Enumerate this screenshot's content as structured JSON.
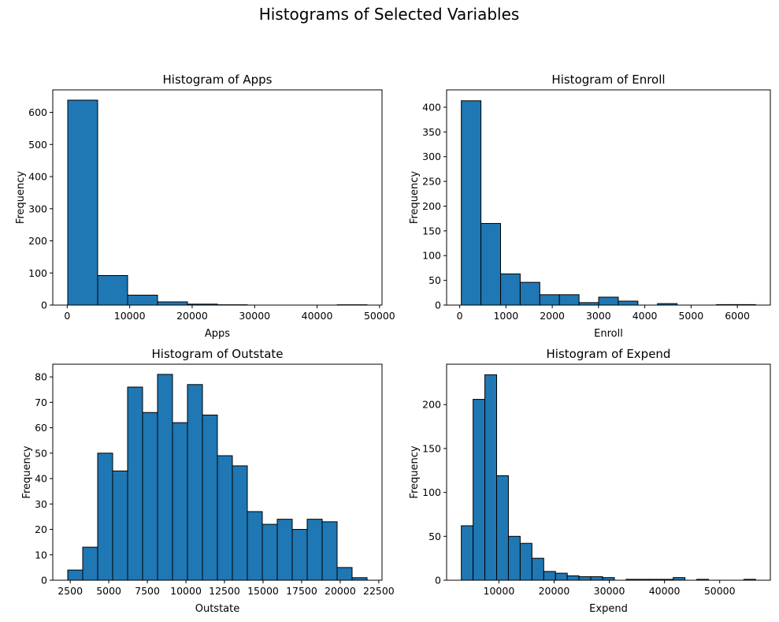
{
  "figure": {
    "suptitle": "Histograms of Selected Variables"
  },
  "chart_data": [
    {
      "type": "bar",
      "title": "Histogram of Apps",
      "xlabel": "Apps",
      "ylabel": "Frequency",
      "bin_edges": [
        81,
        4873,
        9665,
        14457,
        19249,
        24041,
        28833,
        33625,
        38417,
        43209,
        48001
      ],
      "values": [
        638,
        92,
        31,
        10,
        3,
        1,
        0,
        0,
        0,
        1
      ],
      "xlim": [
        -2315,
        50397
      ],
      "ylim": [
        0,
        670
      ],
      "xticks": [
        0,
        10000,
        20000,
        30000,
        40000,
        50000
      ],
      "yticks": [
        0,
        100,
        200,
        300,
        400,
        500,
        600
      ]
    },
    {
      "type": "bar",
      "title": "Histogram of Enroll",
      "xlabel": "Enroll",
      "ylabel": "Frequency",
      "bin_edges": [
        35,
        459,
        883,
        1307,
        1731,
        2155,
        2579,
        3003,
        3427,
        3851,
        4275,
        4699,
        5123,
        5547,
        5971,
        6395
      ],
      "values": [
        413,
        165,
        63,
        46,
        21,
        21,
        5,
        16,
        8,
        0,
        3,
        0,
        0,
        1,
        1
      ],
      "xlim": [
        -283,
        6713
      ],
      "ylim": [
        0,
        435
      ],
      "xticks": [
        0,
        1000,
        2000,
        3000,
        4000,
        5000,
        6000
      ],
      "yticks": [
        0,
        50,
        100,
        150,
        200,
        250,
        300,
        350,
        400
      ]
    },
    {
      "type": "bar",
      "title": "Histogram of Outstate",
      "xlabel": "Outstate",
      "ylabel": "Frequency",
      "bin_edges": [
        2340,
        3310,
        4280,
        5250,
        6220,
        7190,
        8160,
        9130,
        10100,
        11070,
        12040,
        13010,
        13980,
        14950,
        15920,
        16890,
        17860,
        18830,
        19800,
        20770,
        21740
      ],
      "values": [
        4,
        13,
        50,
        43,
        76,
        66,
        81,
        62,
        77,
        65,
        49,
        45,
        27,
        22,
        24,
        20,
        24,
        23,
        5,
        1
      ],
      "xlim": [
        1370,
        22710
      ],
      "ylim": [
        0,
        85
      ],
      "xticks": [
        2500,
        5000,
        7500,
        10000,
        12500,
        15000,
        17500,
        20000,
        22500
      ],
      "yticks": [
        0,
        10,
        20,
        30,
        40,
        50,
        60,
        70,
        80
      ]
    },
    {
      "type": "bar",
      "title": "Histogram of Expend",
      "xlabel": "Expend",
      "ylabel": "Frequency",
      "bin_edges": [
        3186,
        5319,
        7452,
        9585,
        11718,
        13851,
        15984,
        18117,
        20250,
        22383,
        24516,
        26649,
        28782,
        30915,
        33048,
        35181,
        37314,
        39447,
        41580,
        43713,
        45846,
        47979,
        50112,
        52245,
        54378,
        56511
      ],
      "values": [
        62,
        206,
        234,
        119,
        50,
        42,
        25,
        10,
        8,
        5,
        4,
        4,
        3,
        0,
        1,
        1,
        1,
        1,
        3,
        0,
        1,
        0,
        0,
        0,
        1
      ],
      "xlim": [
        520,
        59177
      ],
      "ylim": [
        0,
        246
      ],
      "xticks": [
        10000,
        20000,
        30000,
        40000,
        50000
      ],
      "yticks": [
        0,
        50,
        100,
        150,
        200
      ]
    }
  ]
}
